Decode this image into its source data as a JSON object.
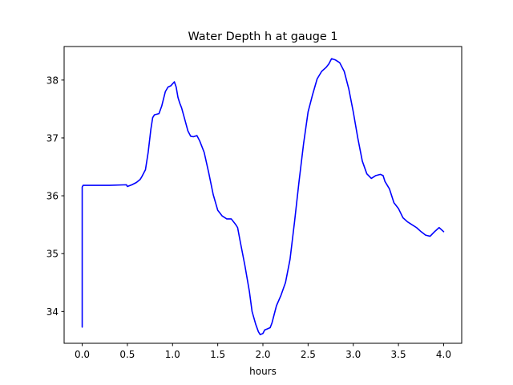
{
  "chart_data": {
    "type": "line",
    "title": "Water Depth h at gauge 1",
    "xlabel": "hours",
    "ylabel": "",
    "xlim": [
      -0.2,
      4.2
    ],
    "ylim": [
      33.45,
      38.58
    ],
    "xticks": [
      0.0,
      0.5,
      1.0,
      1.5,
      2.0,
      2.5,
      3.0,
      3.5,
      4.0
    ],
    "xtick_labels": [
      "0.0",
      "0.5",
      "1.0",
      "1.5",
      "2.0",
      "2.5",
      "3.0",
      "3.5",
      "4.0"
    ],
    "yticks": [
      34,
      35,
      36,
      37,
      38
    ],
    "ytick_labels": [
      "34",
      "35",
      "36",
      "37",
      "38"
    ],
    "grid": false,
    "legend": null,
    "series": [
      {
        "color": "#0000ff",
        "x": [
          0.0,
          0.0,
          0.01,
          0.1,
          0.3,
          0.49,
          0.5,
          0.55,
          0.6,
          0.64,
          0.66,
          0.7,
          0.73,
          0.76,
          0.78,
          0.8,
          0.85,
          0.88,
          0.92,
          0.95,
          0.98,
          1.02,
          1.04,
          1.06,
          1.08,
          1.1,
          1.13,
          1.17,
          1.2,
          1.23,
          1.27,
          1.3,
          1.35,
          1.4,
          1.45,
          1.5,
          1.55,
          1.6,
          1.65,
          1.7,
          1.72,
          1.75,
          1.8,
          1.85,
          1.88,
          1.92,
          1.95,
          1.97,
          2.0,
          2.02,
          2.05,
          2.08,
          2.1,
          2.15,
          2.2,
          2.25,
          2.3,
          2.35,
          2.4,
          2.45,
          2.5,
          2.55,
          2.6,
          2.65,
          2.7,
          2.73,
          2.76,
          2.8,
          2.85,
          2.9,
          2.95,
          3.0,
          3.05,
          3.1,
          3.15,
          3.2,
          3.25,
          3.3,
          3.33,
          3.35,
          3.4,
          3.45,
          3.5,
          3.55,
          3.6,
          3.65,
          3.7,
          3.75,
          3.8,
          3.85,
          3.9,
          3.95,
          4.0
        ],
        "values": [
          33.73,
          36.15,
          36.18,
          36.18,
          36.18,
          36.19,
          36.16,
          36.19,
          36.23,
          36.28,
          36.33,
          36.45,
          36.75,
          37.15,
          37.35,
          37.4,
          37.42,
          37.55,
          37.8,
          37.88,
          37.9,
          37.97,
          37.88,
          37.7,
          37.6,
          37.52,
          37.35,
          37.12,
          37.03,
          37.02,
          37.04,
          36.95,
          36.75,
          36.4,
          36.02,
          35.75,
          35.65,
          35.6,
          35.6,
          35.5,
          35.45,
          35.2,
          34.8,
          34.35,
          34.0,
          33.78,
          33.65,
          33.6,
          33.62,
          33.68,
          33.7,
          33.72,
          33.8,
          34.1,
          34.28,
          34.5,
          34.9,
          35.55,
          36.25,
          36.9,
          37.45,
          37.75,
          38.02,
          38.15,
          38.22,
          38.28,
          38.37,
          38.35,
          38.3,
          38.15,
          37.85,
          37.45,
          37.0,
          36.6,
          36.38,
          36.3,
          36.35,
          36.37,
          36.35,
          36.25,
          36.12,
          35.88,
          35.78,
          35.62,
          35.55,
          35.5,
          35.45,
          35.38,
          35.32,
          35.3,
          35.38,
          35.45,
          35.38
        ]
      }
    ]
  }
}
